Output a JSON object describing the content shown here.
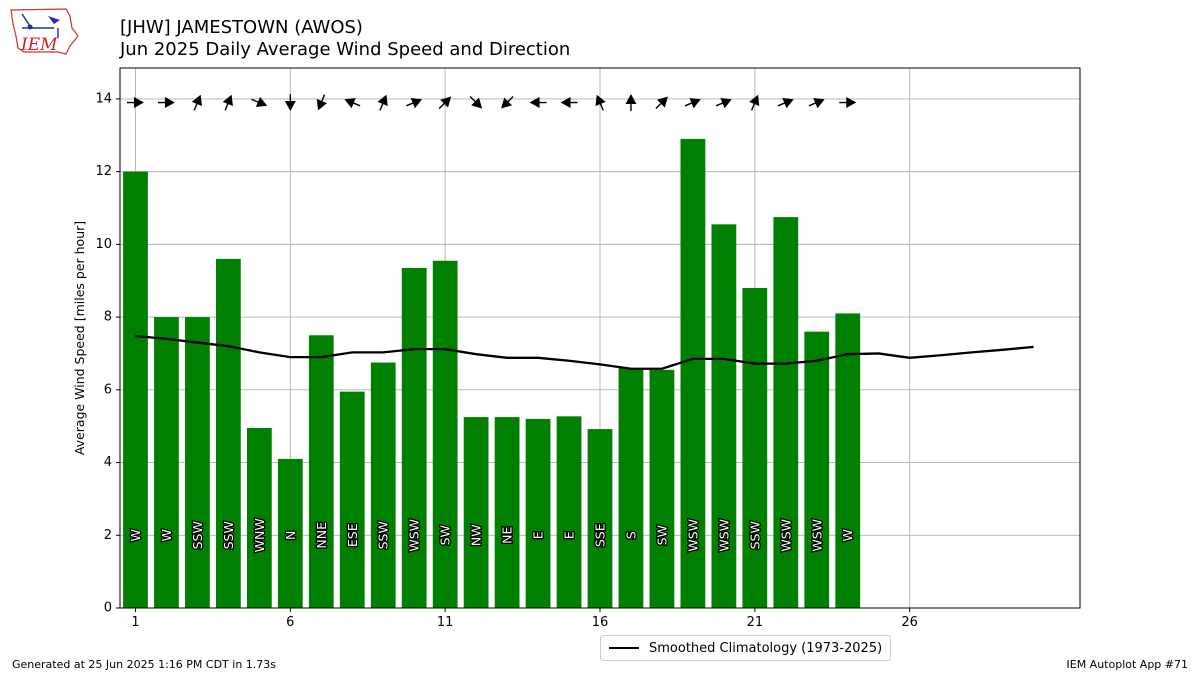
{
  "header": {
    "title_line1": "[JHW] JAMESTOWN (AWOS)",
    "title_line2": "Jun 2025 Daily Average Wind Speed and Direction",
    "logo_text": "IEM"
  },
  "footer": {
    "generated": "Generated at 25 Jun 2025 1:16 PM CDT in 1.73s",
    "app": "IEM Autoplot App #71"
  },
  "legend": {
    "label": "Smoothed Climatology (1973-2025)"
  },
  "colors": {
    "bar": "#008000",
    "climatology": "#000000",
    "arrow": "#000000",
    "grid": "#b0b0b0"
  },
  "chart_data": {
    "type": "bar",
    "title": "[JHW] JAMESTOWN (AWOS)",
    "subtitle": "Jun 2025 Daily Average Wind Speed and Direction",
    "ylabel": "Average Wind Speed [miles per hour]",
    "xlabel": "",
    "xlim": [
      0.5,
      31.5
    ],
    "ylim": [
      0,
      14.85
    ],
    "xticks": [
      1,
      6,
      11,
      16,
      21,
      26
    ],
    "yticks": [
      0,
      2,
      4,
      6,
      8,
      10,
      12,
      14
    ],
    "grid": true,
    "legend_position": "bottom-center",
    "days": [
      1,
      2,
      3,
      4,
      5,
      6,
      7,
      8,
      9,
      10,
      11,
      12,
      13,
      14,
      15,
      16,
      17,
      18,
      19,
      20,
      21,
      22,
      23,
      24
    ],
    "speed": [
      12.0,
      8.0,
      8.0,
      9.6,
      4.95,
      4.1,
      7.5,
      5.95,
      6.75,
      9.35,
      9.55,
      5.25,
      5.25,
      5.2,
      5.27,
      4.92,
      6.6,
      6.55,
      12.9,
      10.55,
      8.8,
      10.75,
      7.6,
      8.1
    ],
    "direction": [
      "W",
      "W",
      "SSW",
      "SSW",
      "WNW",
      "N",
      "NNE",
      "ESE",
      "SSW",
      "WSW",
      "SW",
      "NW",
      "NE",
      "E",
      "E",
      "SSE",
      "S",
      "SW",
      "WSW",
      "WSW",
      "SSW",
      "WSW",
      "WSW",
      "W"
    ],
    "climatology": {
      "name": "Smoothed Climatology (1973-2025)",
      "x": [
        1,
        2,
        3,
        4,
        5,
        6,
        7,
        8,
        9,
        10,
        11,
        12,
        13,
        14,
        15,
        16,
        17,
        18,
        19,
        20,
        21,
        22,
        23,
        24,
        25,
        26,
        27,
        28,
        29,
        30
      ],
      "y": [
        7.48,
        7.4,
        7.3,
        7.2,
        7.03,
        6.9,
        6.9,
        7.03,
        7.03,
        7.12,
        7.12,
        6.98,
        6.88,
        6.88,
        6.8,
        6.7,
        6.58,
        6.58,
        6.85,
        6.85,
        6.72,
        6.72,
        6.8,
        6.98,
        7.0,
        6.88,
        6.95,
        7.03,
        7.1,
        7.18
      ]
    }
  }
}
